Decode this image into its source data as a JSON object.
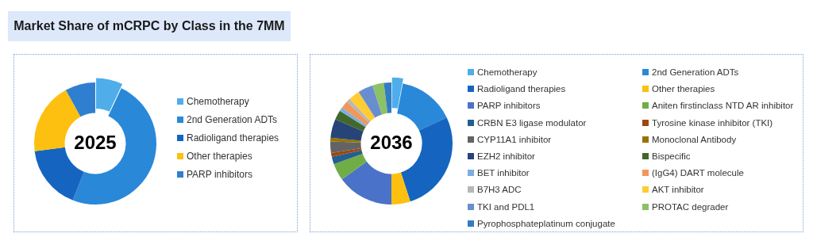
{
  "chart_data": [
    {
      "type": "donut",
      "title": "Market Share of mCRPC by Class in the 7MM",
      "annotations": [
        "2025"
      ],
      "legend": "right",
      "categories": [
        "Chemotherapy",
        "2nd Generation ADTs",
        "Radioligand therapies",
        "Other therapies",
        "PARP inhibitors"
      ],
      "values": [
        7,
        49,
        17,
        19,
        8
      ],
      "colors": [
        "#4fadea",
        "#2a88d8",
        "#1565c0",
        "#fdc010",
        "#2f7fd0"
      ]
    },
    {
      "type": "donut",
      "annotations": [
        "2036"
      ],
      "legend": "right",
      "categories": [
        "Chemotherapy",
        "2nd Generation ADTs",
        "Radioligand therapies",
        "Other therapies",
        "PARP inhibitors",
        "Aniten firstinclass NTD AR inhibitor",
        "CRBN E3 ligase modulator",
        "Tyrosine kinase inhibitor (TKI)",
        "CYP11A1 inhibitor",
        "Monoclonal Antibody",
        "EZH2 inhibitor",
        "Bispecific",
        "BET inhibitor",
        "(IgG4) DART molecule",
        "B7H3 ADC",
        "AKT inhibitor",
        "TKI and PDL1",
        "PROTAC degrader",
        "Pyrophosphateplatinum conjugate"
      ],
      "values": [
        3,
        15,
        27,
        5,
        15,
        4.5,
        2,
        1,
        3,
        1,
        5,
        2.5,
        1,
        2,
        1,
        3,
        4,
        3,
        2
      ],
      "colors": [
        "#4fadea",
        "#2a88d8",
        "#1565c0",
        "#fdc010",
        "#4a72c8",
        "#70ad47",
        "#255e91",
        "#9e480e",
        "#636363",
        "#997300",
        "#264478",
        "#43682b",
        "#7cafdd",
        "#f1975a",
        "#b7b7b7",
        "#ffcd33",
        "#698ed0",
        "#8cc168",
        "#327dc2"
      ]
    }
  ]
}
